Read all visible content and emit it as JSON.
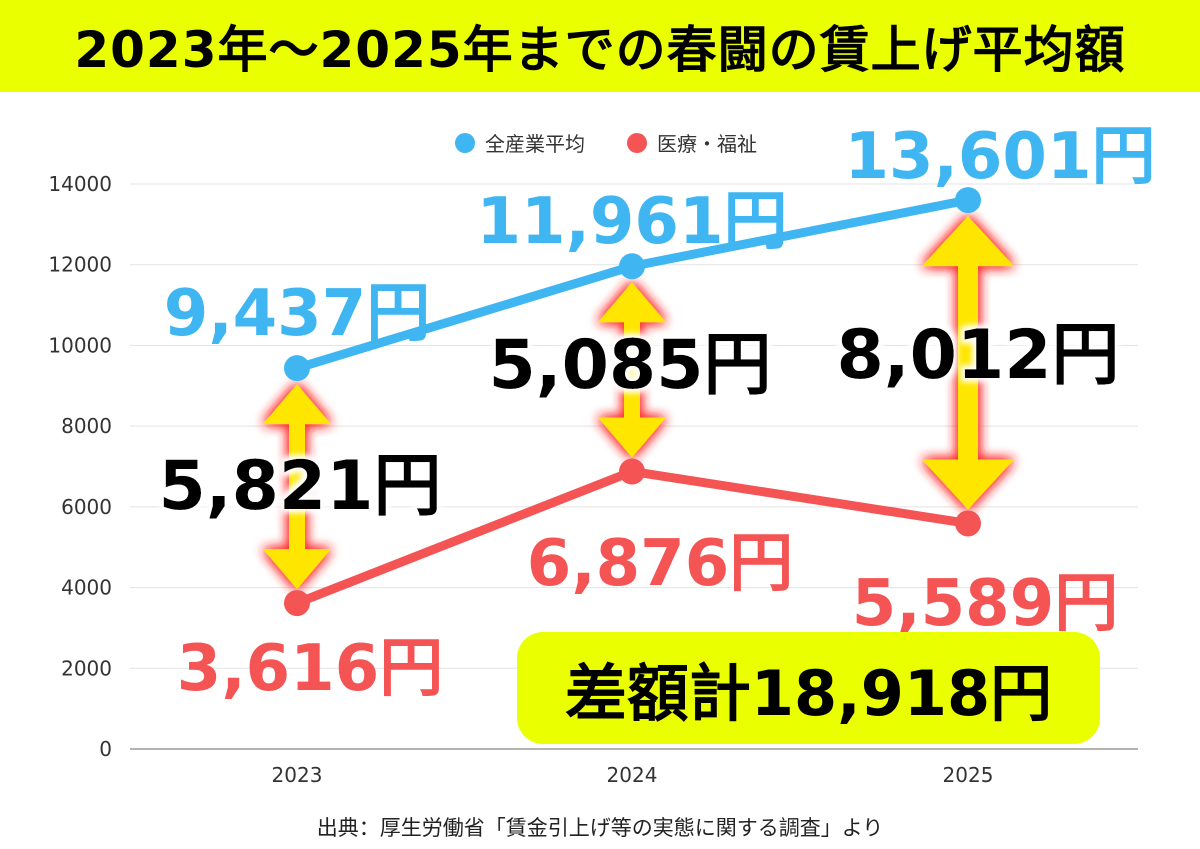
{
  "title": "2023年〜2025年までの春闘の賃上げ平均額",
  "source": "出典：厚生労働省「賃金引上げ等の実態に関する調査」より",
  "total_badge": "差額計18,918円",
  "colors": {
    "all": "#3fb6f2",
    "medical": "#f45454",
    "accent": "#eaff00",
    "arrow": "#ffe600"
  },
  "chart_data": {
    "type": "line",
    "title": "",
    "xlabel": "",
    "ylabel": "",
    "categories": [
      "2023",
      "2024",
      "2025"
    ],
    "ylim": [
      0,
      14000
    ],
    "yticks": [
      "0",
      "2000",
      "4000",
      "6000",
      "8000",
      "10000",
      "12000",
      "14000"
    ],
    "grid": true,
    "legend_position": "top",
    "series": [
      {
        "name": "全産業平均",
        "values": [
          9437,
          11961,
          13601
        ],
        "labels": [
          "9,437円",
          "11,961円",
          "13,601円"
        ]
      },
      {
        "name": "医療・福祉",
        "values": [
          3616,
          6876,
          5589
        ],
        "labels": [
          "3,616円",
          "6,876円",
          "5,589円"
        ]
      }
    ],
    "differences": [
      {
        "category": "2023",
        "value": 5821,
        "label": "5,821円"
      },
      {
        "category": "2024",
        "value": 5085,
        "label": "5,085円"
      },
      {
        "category": "2025",
        "value": 8012,
        "label": "8,012円"
      }
    ]
  }
}
